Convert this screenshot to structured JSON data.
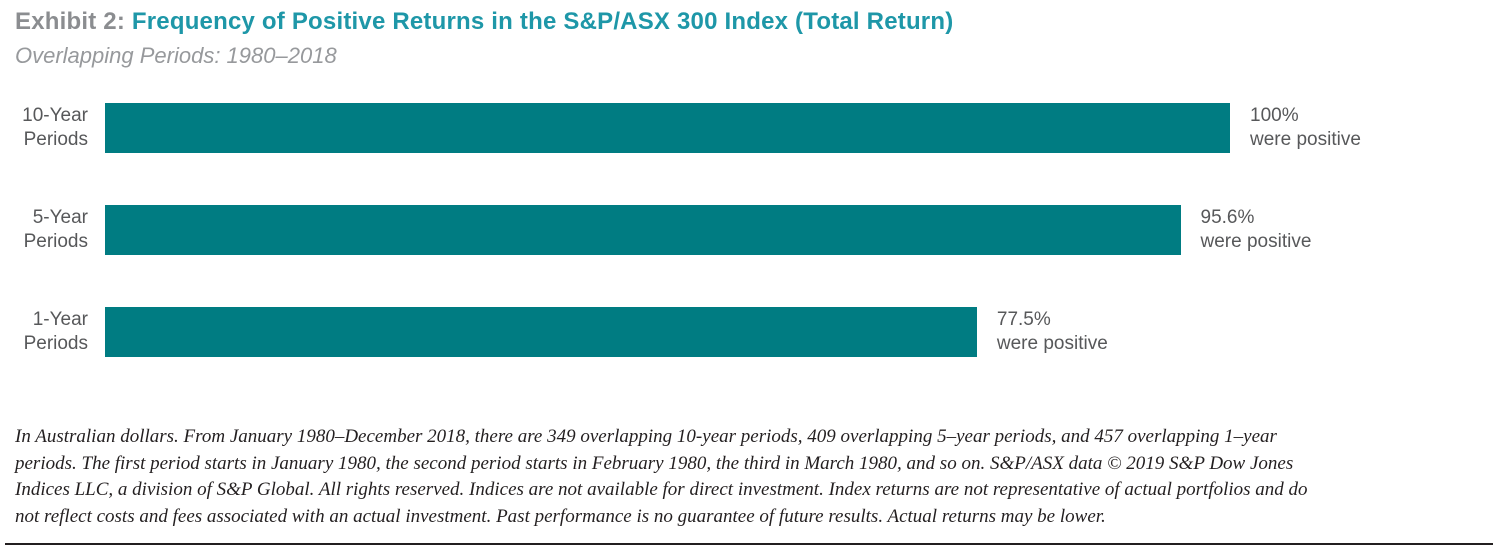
{
  "header": {
    "exhibit_label": "Exhibit 2:",
    "title": "Frequency of Positive Returns in the S&P/ASX 300 Index (Total Return)",
    "subtitle": "Overlapping Periods: 1980–2018"
  },
  "colors": {
    "bar": "#007c82",
    "title_accent": "#1e97a8",
    "exhibit_gray": "#8b8d90",
    "subtitle_gray": "#97999c",
    "label_gray": "#57585a",
    "footnote_black": "#231f20"
  },
  "chart_data": {
    "type": "bar",
    "orientation": "horizontal",
    "title": "Frequency of Positive Returns in the S&P/ASX 300 Index (Total Return)",
    "subtitle": "Overlapping Periods: 1980–2018",
    "categories": [
      "10-Year Periods",
      "5-Year Periods",
      "1-Year Periods"
    ],
    "values": [
      100,
      95.6,
      77.5
    ],
    "value_labels": [
      "100%",
      "95.6%",
      "77.5%"
    ],
    "value_sublabel": "were positive",
    "xlabel": "",
    "ylabel": "",
    "xlim": [
      0,
      100
    ],
    "grid": false,
    "legend": false,
    "bar_color": "#007c82"
  },
  "bars": [
    {
      "label_line1": "10-Year",
      "label_line2": "Periods",
      "value_label": "100%",
      "sublabel": "were positive"
    },
    {
      "label_line1": "5-Year",
      "label_line2": "Periods",
      "value_label": "95.6%",
      "sublabel": "were positive"
    },
    {
      "label_line1": "1-Year",
      "label_line2": "Periods",
      "value_label": "77.5%",
      "sublabel": "were positive"
    }
  ],
  "footnote": {
    "lines": [
      "In Australian dollars. From January 1980–December 2018, there are 349 overlapping 10-year periods, 409 overlapping 5–year periods, and 457 overlapping 1–year",
      "periods. The first period starts in January 1980, the second period starts in February 1980, the third in March 1980, and so on. S&P/ASX data © 2019 S&P Dow Jones",
      "Indices LLC, a division of S&P Global. All rights reserved. Indices are not available for direct investment. Index returns are not representative of actual portfolios and do",
      "not reflect costs and fees associated with an actual investment. Past performance is no guarantee of future results. Actual returns may be lower."
    ]
  }
}
